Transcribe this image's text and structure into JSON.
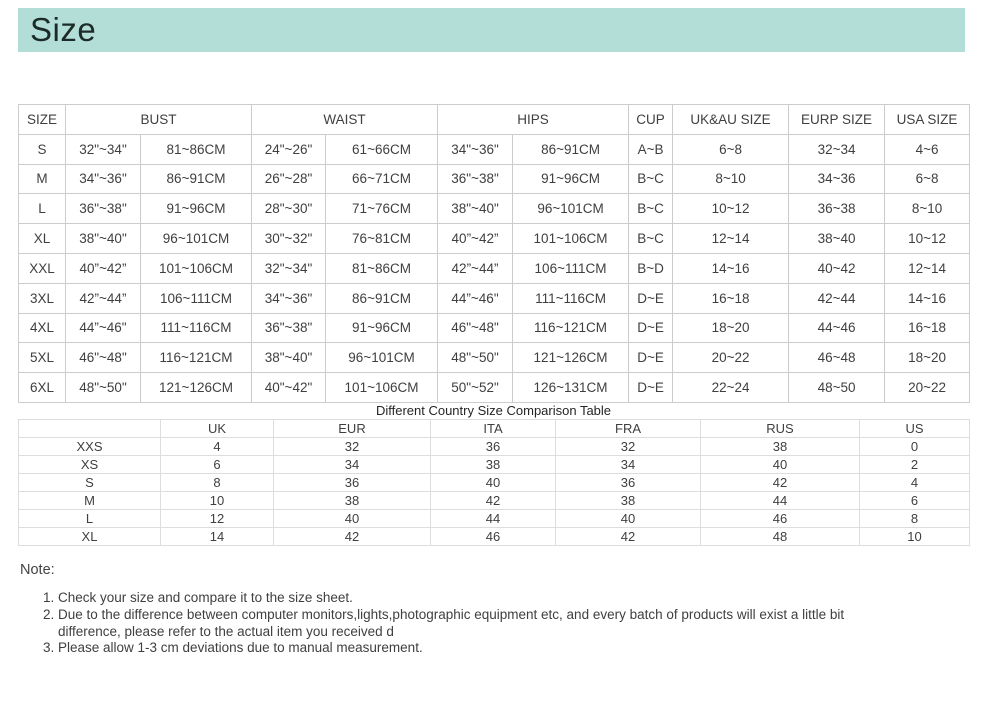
{
  "page": {
    "title": "Size"
  },
  "colors": {
    "header_band": "#b3ded7",
    "table_border": "#cccccc",
    "text": "#3f3f3f"
  },
  "size_table": {
    "header": [
      {
        "label": "SIZE",
        "colspan": 1
      },
      {
        "label": "BUST",
        "colspan": 2
      },
      {
        "label": "WAIST",
        "colspan": 2
      },
      {
        "label": "HIPS",
        "colspan": 2
      },
      {
        "label": "CUP",
        "colspan": 1
      },
      {
        "label": "UK&AU SIZE",
        "colspan": 1
      },
      {
        "label": "EURP SIZE",
        "colspan": 1
      },
      {
        "label": "USA SIZE",
        "colspan": 1
      }
    ],
    "rows": [
      [
        "S",
        "32\"~34\"",
        "81~86CM",
        "24\"~26\"",
        "61~66CM",
        "34\"~36\"",
        "86~91CM",
        "A~B",
        "6~8",
        "32~34",
        "4~6"
      ],
      [
        "M",
        "34\"~36\"",
        "86~91CM",
        "26\"~28\"",
        "66~71CM",
        "36\"~38\"",
        "91~96CM",
        "B~C",
        "8~10",
        "34~36",
        "6~8"
      ],
      [
        "L",
        "36\"~38\"",
        "91~96CM",
        "28\"~30\"",
        "71~76CM",
        "38\"~40\"",
        "96~101CM",
        "B~C",
        "10~12",
        "36~38",
        "8~10"
      ],
      [
        "XL",
        "38\"~40\"",
        "96~101CM",
        "30\"~32\"",
        "76~81CM",
        "40”~42”",
        "101~106CM",
        "B~C",
        "12~14",
        "38~40",
        "10~12"
      ],
      [
        "XXL",
        "40”~42”",
        "101~106CM",
        "32\"~34\"",
        "81~86CM",
        "42”~44”",
        "106~111CM",
        "B~D",
        "14~16",
        "40~42",
        "12~14"
      ],
      [
        "3XL",
        "42”~44”",
        "106~111CM",
        "34\"~36\"",
        "86~91CM",
        "44”~46\"",
        "111~116CM",
        "D~E",
        "16~18",
        "42~44",
        "14~16"
      ],
      [
        "4XL",
        "44”~46\"",
        "111~116CM",
        "36\"~38\"",
        "91~96CM",
        "46\"~48\"",
        "116~121CM",
        "D~E",
        "18~20",
        "44~46",
        "16~18"
      ],
      [
        "5XL",
        "46\"~48\"",
        "116~121CM",
        "38\"~40\"",
        "96~101CM",
        "48\"~50\"",
        "121~126CM",
        "D~E",
        "20~22",
        "46~48",
        "18~20"
      ],
      [
        "6XL",
        "48\"~50\"",
        "121~126CM",
        "40\"~42\"",
        "101~106CM",
        "50\"~52\"",
        "126~131CM",
        "D~E",
        "22~24",
        "48~50",
        "20~22"
      ]
    ]
  },
  "comparison_table": {
    "title": "Different Country Size Comparison Table",
    "columns": [
      "",
      "UK",
      "EUR",
      "ITA",
      "FRA",
      "RUS",
      "US"
    ],
    "rows": [
      [
        "XXS",
        "4",
        "32",
        "36",
        "32",
        "38",
        "0"
      ],
      [
        "XS",
        "6",
        "34",
        "38",
        "34",
        "40",
        "2"
      ],
      [
        "S",
        "8",
        "36",
        "40",
        "36",
        "42",
        "4"
      ],
      [
        "M",
        "10",
        "38",
        "42",
        "38",
        "44",
        "6"
      ],
      [
        "L",
        "12",
        "40",
        "44",
        "40",
        "46",
        "8"
      ],
      [
        "XL",
        "14",
        "42",
        "46",
        "42",
        "48",
        "10"
      ]
    ]
  },
  "note": {
    "label": "Note:",
    "items": [
      "Check your size and compare it to the size sheet.",
      "Due to the difference between computer monitors,lights,photographic equipment etc, and every batch of products will exist a little bit difference, please refer to the actual item you received d",
      "Please allow 1-3 cm deviations due to manual measurement."
    ]
  }
}
